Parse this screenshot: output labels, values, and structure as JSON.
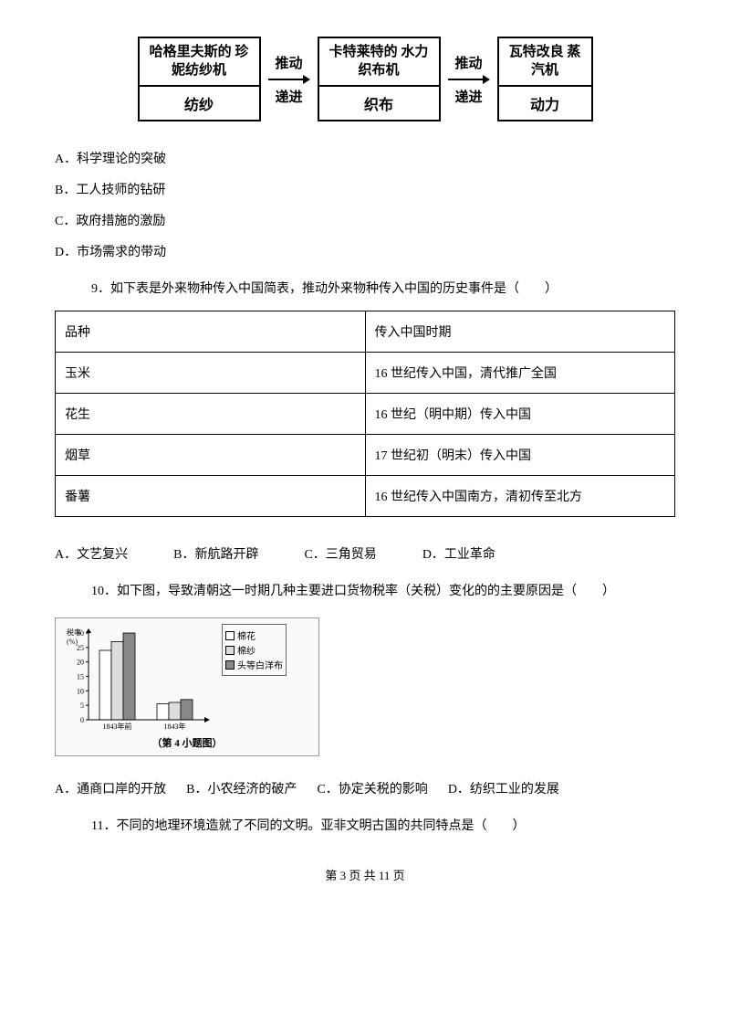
{
  "diagram": {
    "box1": {
      "top": "哈格里夫斯的\n珍妮纺纱机",
      "bot": "纺纱"
    },
    "arrow1": {
      "top": "推动",
      "bot": "递进"
    },
    "box2": {
      "top": "卡特莱特的\n水力织布机",
      "bot": "织布"
    },
    "arrow2": {
      "top": "推动",
      "bot": "递进"
    },
    "box3": {
      "top": "瓦特改良\n蒸汽机",
      "bot": "动力"
    },
    "arrow_color": "#000000"
  },
  "q8_options": {
    "a": "A．科学理论的突破",
    "b": "B．工人技师的钻研",
    "c": "C．政府措施的激励",
    "d": "D．市场需求的带动"
  },
  "q9": {
    "stem": "9．如下表是外来物种传入中国简表，推动外来物种传入中国的历史事件是（　　）",
    "table": {
      "header": [
        "品种",
        "传入中国时期"
      ],
      "rows": [
        [
          "玉米",
          "16 世纪传入中国，清代推广全国"
        ],
        [
          "花生",
          "16 世纪（明中期）传入中国"
        ],
        [
          "烟草",
          "17 世纪初（明末）传入中国"
        ],
        [
          "番薯",
          "16 世纪传入中国南方，清初传至北方"
        ]
      ]
    },
    "options": {
      "a": "A．文艺复兴",
      "b": "B．新航路开辟",
      "c": "C．三角贸易",
      "d": "D．工业革命"
    }
  },
  "q10": {
    "stem": "10．如下图，导致清朝这一时期几种主要进口货物税率（关税）变化的的主要原因是（　　）",
    "chart": {
      "ylabel": "税率\n(%)",
      "yticks": [
        0,
        5,
        10,
        15,
        20,
        25,
        30
      ],
      "ymax": 30,
      "xlabels": [
        "1843年前",
        "1843年"
      ],
      "caption": "（第 4 小题图）",
      "legend": [
        {
          "label": "棉花",
          "fill": "#ffffff"
        },
        {
          "label": "棉纱",
          "fill": "#dddddd"
        },
        {
          "label": "头等白洋布",
          "fill": "#888888"
        }
      ],
      "series": [
        {
          "name": "棉花",
          "fill": "#ffffff",
          "values": [
            24,
            5.5
          ]
        },
        {
          "name": "棉纱",
          "fill": "#dddddd",
          "values": [
            27,
            6
          ]
        },
        {
          "name": "头等白洋布",
          "fill": "#888888",
          "values": [
            30,
            7
          ]
        }
      ],
      "axis_color": "#000000",
      "bar_border": "#000000"
    },
    "options": {
      "a": "A．通商口岸的开放",
      "b": "B．小农经济的破产",
      "c": "C．协定关税的影响",
      "d": "D．纺织工业的发展"
    }
  },
  "q11": {
    "stem": "11．不同的地理环境造就了不同的文明。亚非文明古国的共同特点是（　　）"
  },
  "footer": "第 3 页 共 11 页"
}
